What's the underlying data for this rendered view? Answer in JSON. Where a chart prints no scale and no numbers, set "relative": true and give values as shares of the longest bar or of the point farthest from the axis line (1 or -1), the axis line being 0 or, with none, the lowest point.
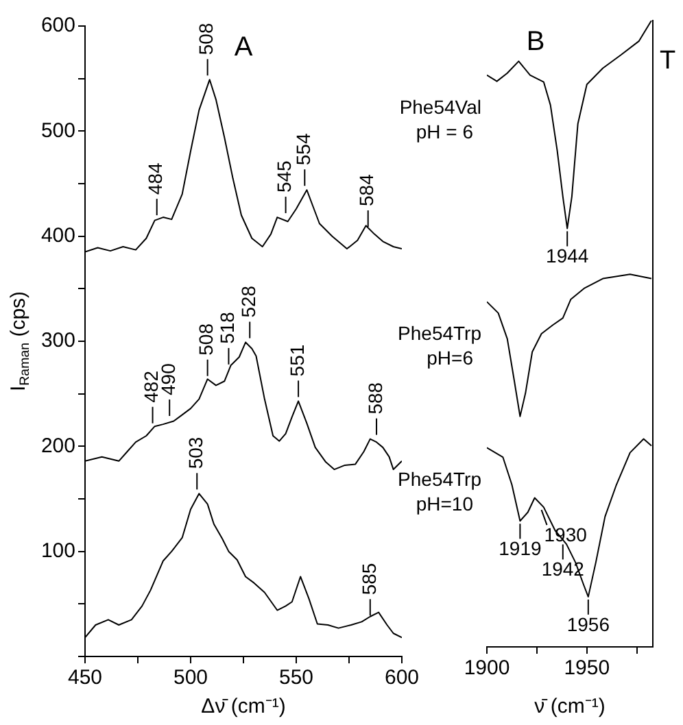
{
  "chart_data": [
    {
      "type": "line",
      "title": "A",
      "xlabel": "Δν̄ (cm⁻¹)",
      "ylabel": "I$_{Raman}$ (cps)",
      "xlim": [
        450,
        600
      ],
      "xticks": [
        450,
        {
          "value": 475,
          "label": null
        },
        500,
        {
          "value": 525,
          "label": null
        },
        550,
        {
          "value": 575,
          "label": null
        },
        600
      ],
      "ylim": [
        0,
        600
      ],
      "yticks": [
        {
          "value": 0,
          "label": null
        },
        {
          "value": 50,
          "label": null
        },
        100,
        {
          "value": 150,
          "label": null
        },
        200,
        {
          "value": 250,
          "label": null
        },
        300,
        {
          "value": 350,
          "label": null
        },
        400,
        {
          "value": 450,
          "label": null
        },
        500,
        {
          "value": 550,
          "label": null
        },
        600
      ],
      "series": [
        {
          "color": "#000000",
          "x": [
            450,
            456,
            462,
            468,
            474,
            479,
            483,
            487,
            491,
            496,
            500,
            504,
            509,
            512,
            516,
            520,
            524,
            529,
            534,
            538,
            541,
            546,
            550,
            555,
            558,
            561,
            567,
            574,
            579,
            583,
            587,
            591,
            596,
            600
          ],
          "values": [
            385,
            389,
            386,
            390,
            387,
            398,
            415,
            418,
            416,
            440,
            481,
            520,
            549,
            530,
            494,
            455,
            420,
            398,
            390,
            402,
            418,
            414,
            426,
            444,
            428,
            412,
            400,
            388,
            396,
            410,
            402,
            395,
            390,
            388
          ]
        },
        {
          "color": "#000000",
          "x": [
            450,
            458,
            466,
            470,
            474,
            479,
            483,
            487,
            492,
            496,
            500,
            504,
            508,
            512,
            516,
            519,
            523,
            526,
            529,
            531,
            535,
            539,
            542,
            545,
            548,
            551,
            555,
            559,
            564,
            568,
            573,
            578,
            582,
            585,
            588,
            591,
            594,
            596,
            600
          ],
          "values": [
            186,
            190,
            186,
            195,
            204,
            210,
            219,
            221,
            224,
            230,
            236,
            245,
            264,
            258,
            262,
            277,
            285,
            299,
            293,
            286,
            245,
            210,
            205,
            212,
            228,
            243,
            222,
            199,
            185,
            178,
            182,
            183,
            195,
            207,
            204,
            199,
            190,
            178,
            186
          ]
        },
        {
          "color": "#000000",
          "x": [
            450,
            455,
            461,
            466,
            472,
            477,
            481,
            487,
            491,
            496,
            500,
            504,
            508,
            511,
            515,
            518,
            522,
            526,
            530,
            535,
            541,
            545,
            548,
            552,
            556,
            560,
            565,
            570,
            576,
            581,
            585,
            589,
            593,
            596,
            600
          ],
          "values": [
            18,
            30,
            35,
            30,
            35,
            48,
            63,
            91,
            100,
            113,
            140,
            155,
            145,
            126,
            112,
            100,
            92,
            76,
            70,
            61,
            44,
            48,
            52,
            76,
            55,
            31,
            30,
            27,
            30,
            33,
            38,
            42,
            30,
            22,
            18
          ]
        }
      ],
      "annotations": [
        {
          "text": "484",
          "x": 484,
          "y": 416
        },
        {
          "text": "508",
          "x": 508,
          "y": 549
        },
        {
          "text": "545",
          "x": 545,
          "y": 418
        },
        {
          "text": "554",
          "x": 554,
          "y": 444
        },
        {
          "text": "584",
          "x": 584,
          "y": 405
        },
        {
          "text": "482",
          "x": 482,
          "y": 218
        },
        {
          "text": "490",
          "x": 490,
          "y": 225
        },
        {
          "text": "508",
          "x": 508,
          "y": 263
        },
        {
          "text": "518",
          "x": 518,
          "y": 274
        },
        {
          "text": "528",
          "x": 528,
          "y": 299
        },
        {
          "text": "551",
          "x": 551,
          "y": 243
        },
        {
          "text": "588",
          "x": 588,
          "y": 207
        },
        {
          "text": "503",
          "x": 503,
          "y": 155
        },
        {
          "text": "585",
          "x": 585,
          "y": 35
        }
      ]
    },
    {
      "type": "line",
      "title": "B",
      "xlabel": "ν̄ (cm⁻¹)",
      "ylabel": "T",
      "relative": true,
      "xlim": [
        1900,
        1983
      ],
      "xticks": [
        1900,
        {
          "value": 1925,
          "label": null
        },
        1950,
        {
          "value": 1975,
          "label": null
        }
      ],
      "series": [
        {
          "name": "Phe54Val\npH = 6",
          "color": "#000000",
          "x": [
            1900,
            1905,
            1910.2,
            1915.9,
            1921.6,
            1928.4,
            1931.8,
            1935.2,
            1938,
            1940.2,
            1942.5,
            1945.5,
            1950,
            1958,
            1967,
            1976,
            1982.3
          ],
          "values": [
            0.913,
            0.903,
            0.916,
            0.935,
            0.913,
            0.902,
            0.865,
            0.792,
            0.719,
            0.668,
            0.719,
            0.835,
            0.898,
            0.924,
            0.945,
            0.967,
            1
          ]
        },
        {
          "name": "Phe54Trp\npH=6",
          "color": "#000000",
          "x": [
            1900,
            1905.7,
            1910.2,
            1913.6,
            1916.6,
            1919.3,
            1922.7,
            1927.3,
            1933,
            1938,
            1942,
            1948.9,
            1958,
            1971.6,
            1982.3
          ],
          "values": [
            0.551,
            0.533,
            0.492,
            0.427,
            0.368,
            0.405,
            0.471,
            0.5,
            0.514,
            0.525,
            0.555,
            0.573,
            0.588,
            0.595,
            0.588
          ]
        },
        {
          "name": "Phe54Trp\npH=10",
          "color": "#000000",
          "x": [
            1900,
            1908,
            1912.5,
            1916.6,
            1920.5,
            1923.9,
            1928.4,
            1934.1,
            1939.8,
            1944.3,
            1948.4,
            1950.7,
            1954.5,
            1959.1,
            1964.8,
            1971.6,
            1978.4,
            1982.3
          ],
          "values": [
            0.318,
            0.303,
            0.259,
            0.201,
            0.215,
            0.238,
            0.223,
            0.186,
            0.164,
            0.135,
            0.099,
            0.08,
            0.135,
            0.208,
            0.259,
            0.31,
            0.332,
            0.321
          ]
        }
      ],
      "annotations": [
        {
          "text": "1944",
          "x": 1940.2,
          "y": 0.668
        },
        {
          "text": "1919",
          "x": 1916.6,
          "y": 0.201
        },
        {
          "text": "1930",
          "x": 1927.3,
          "y": 0.223
        },
        {
          "text": "1942",
          "x": 1938,
          "y": 0.168
        },
        {
          "text": "1956",
          "x": 1950.7,
          "y": 0.08
        }
      ]
    }
  ]
}
